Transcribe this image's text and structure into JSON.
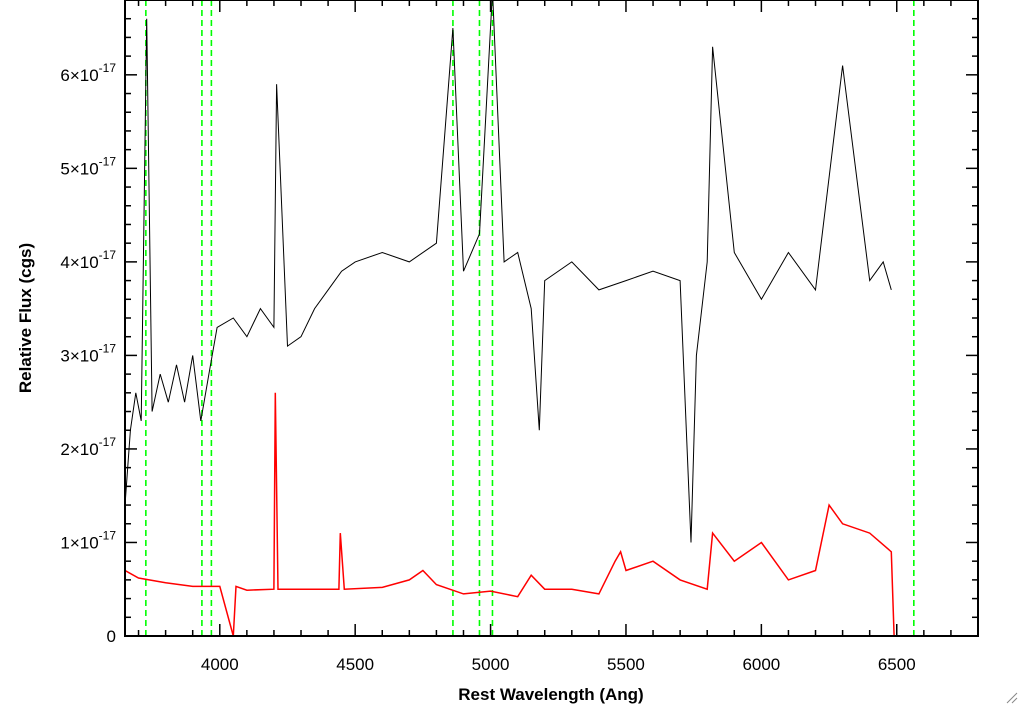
{
  "chart_data": {
    "type": "line",
    "xlabel": "Rest Wavelength (Ang)",
    "ylabel": "Relative Flux (cgs)",
    "xlim": [
      3650,
      6800
    ],
    "ylim": [
      0,
      6.8e-17
    ],
    "x_ticks": [
      {
        "value": 4000,
        "label": "4000"
      },
      {
        "value": 4500,
        "label": "4500"
      },
      {
        "value": 5000,
        "label": "5000"
      },
      {
        "value": 5500,
        "label": "5500"
      },
      {
        "value": 6000,
        "label": "6000"
      },
      {
        "value": 6500,
        "label": "6500"
      }
    ],
    "y_ticks": [
      {
        "value": 0,
        "mantissa": "0",
        "exponent": ""
      },
      {
        "value": 1e-17,
        "mantissa": "1×10",
        "exponent": "-17"
      },
      {
        "value": 2e-17,
        "mantissa": "2×10",
        "exponent": "-17"
      },
      {
        "value": 3e-17,
        "mantissa": "3×10",
        "exponent": "-17"
      },
      {
        "value": 4e-17,
        "mantissa": "4×10",
        "exponent": "-17"
      },
      {
        "value": 5e-17,
        "mantissa": "5×10",
        "exponent": "-17"
      },
      {
        "value": 6e-17,
        "mantissa": "6×10",
        "exponent": "-17"
      }
    ],
    "vertical_lines": [
      3727,
      3934,
      3969,
      4861,
      4959,
      5007,
      6563
    ],
    "colors": {
      "spectrum": "#000000",
      "error": "#ff0000",
      "lines": "#00ff00",
      "axes": "#000000"
    },
    "series": [
      {
        "key": "spectrum",
        "x": [
          3650,
          3670,
          3690,
          3710,
          3730,
          3750,
          3780,
          3810,
          3840,
          3870,
          3900,
          3930,
          3960,
          3990,
          4050,
          4100,
          4150,
          4200,
          4210,
          4250,
          4300,
          4350,
          4400,
          4450,
          4500,
          4600,
          4700,
          4800,
          4861,
          4900,
          4959,
          5007,
          5050,
          5100,
          5150,
          5180,
          5200,
          5300,
          5400,
          5500,
          5600,
          5700,
          5740,
          5760,
          5800,
          5820,
          5900,
          6000,
          6100,
          6200,
          6300,
          6400,
          6450,
          6480
        ],
        "y": [
          1.4e-17,
          2.2e-17,
          2.6e-17,
          2.3e-17,
          6.6e-17,
          2.4e-17,
          2.8e-17,
          2.5e-17,
          2.9e-17,
          2.5e-17,
          3e-17,
          2.3e-17,
          2.8e-17,
          3.3e-17,
          3.4e-17,
          3.2e-17,
          3.5e-17,
          3.3e-17,
          5.9e-17,
          3.1e-17,
          3.2e-17,
          3.5e-17,
          3.7e-17,
          3.9e-17,
          4e-17,
          4.1e-17,
          4e-17,
          4.2e-17,
          6.5e-17,
          3.9e-17,
          4.3e-17,
          6.9e-17,
          4e-17,
          4.1e-17,
          3.5e-17,
          2.2e-17,
          3.8e-17,
          4e-17,
          3.7e-17,
          3.8e-17,
          3.9e-17,
          3.8e-17,
          1e-17,
          3e-17,
          4e-17,
          6.3e-17,
          4.1e-17,
          3.6e-17,
          4.1e-17,
          3.7e-17,
          6.1e-17,
          3.8e-17,
          4e-17,
          3.7e-17
        ]
      },
      {
        "key": "error",
        "x": [
          3650,
          3700,
          3800,
          3900,
          4000,
          4050,
          4060,
          4100,
          4200,
          4205,
          4215,
          4300,
          4440,
          4445,
          4460,
          4600,
          4700,
          4750,
          4800,
          4900,
          5000,
          5100,
          5150,
          5200,
          5300,
          5400,
          5460,
          5480,
          5500,
          5600,
          5700,
          5800,
          5820,
          5900,
          6000,
          6100,
          6200,
          6250,
          6300,
          6400,
          6480,
          6490,
          6500,
          6800
        ],
        "y": [
          7e-18,
          6.2e-18,
          5.7e-18,
          5.3e-18,
          5.3e-18,
          0,
          5.3e-18,
          4.9e-18,
          5e-18,
          2.6e-17,
          5e-18,
          5e-18,
          5e-18,
          1.1e-17,
          5e-18,
          5.2e-18,
          6e-18,
          7e-18,
          5.5e-18,
          4.5e-18,
          4.8e-18,
          4.2e-18,
          6.5e-18,
          5e-18,
          5e-18,
          4.5e-18,
          8e-18,
          9e-18,
          7e-18,
          8e-18,
          6e-18,
          5e-18,
          1.1e-17,
          8e-18,
          1e-17,
          6e-18,
          7e-18,
          1.4e-17,
          1.2e-17,
          1.1e-17,
          9e-18,
          0,
          0,
          0
        ]
      }
    ]
  }
}
